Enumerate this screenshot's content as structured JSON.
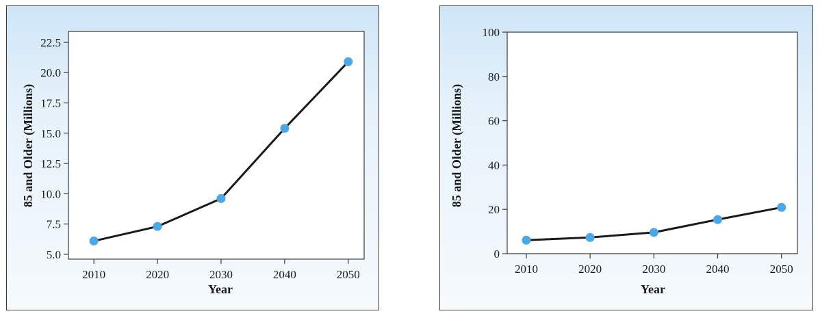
{
  "chart_data": [
    {
      "type": "line",
      "xlabel": "Year",
      "ylabel": "85 and Older (Millions)",
      "x": [
        2010,
        2020,
        2030,
        2040,
        2050
      ],
      "series": [
        {
          "values": [
            6.1,
            7.3,
            9.6,
            15.4,
            20.9
          ]
        }
      ],
      "xlim": [
        2006,
        2052.5
      ],
      "ylim": [
        4.6,
        23.4
      ],
      "xticks": [
        2010,
        2020,
        2030,
        2040,
        2050
      ],
      "xtick_labels": [
        "2010",
        "2020",
        "2030",
        "2040",
        "2050"
      ],
      "yticks": [
        5.0,
        7.5,
        10.0,
        12.5,
        15.0,
        17.5,
        20.0,
        22.5
      ],
      "ytick_labels": [
        "5.0",
        "7.5",
        "10.0",
        "12.5",
        "15.0",
        "17.5",
        "20.0",
        "22.5"
      ],
      "grid": false,
      "line_color": "#1a1a1a",
      "marker_color": "#4aa8e8"
    },
    {
      "type": "line",
      "xlabel": "Year",
      "ylabel": "85 and Older (Millions)",
      "x": [
        2010,
        2020,
        2030,
        2040,
        2050
      ],
      "series": [
        {
          "values": [
            6.1,
            7.3,
            9.6,
            15.4,
            20.9
          ]
        }
      ],
      "xlim": [
        2007,
        2052.5
      ],
      "ylim": [
        0,
        100
      ],
      "xticks": [
        2010,
        2020,
        2030,
        2040,
        2050
      ],
      "xtick_labels": [
        "2010",
        "2020",
        "2030",
        "2040",
        "2050"
      ],
      "yticks": [
        0,
        20,
        40,
        60,
        80,
        100
      ],
      "ytick_labels": [
        "0",
        "20",
        "40",
        "60",
        "80",
        "100"
      ],
      "grid": false,
      "line_color": "#1a1a1a",
      "marker_color": "#4aa8e8"
    }
  ]
}
